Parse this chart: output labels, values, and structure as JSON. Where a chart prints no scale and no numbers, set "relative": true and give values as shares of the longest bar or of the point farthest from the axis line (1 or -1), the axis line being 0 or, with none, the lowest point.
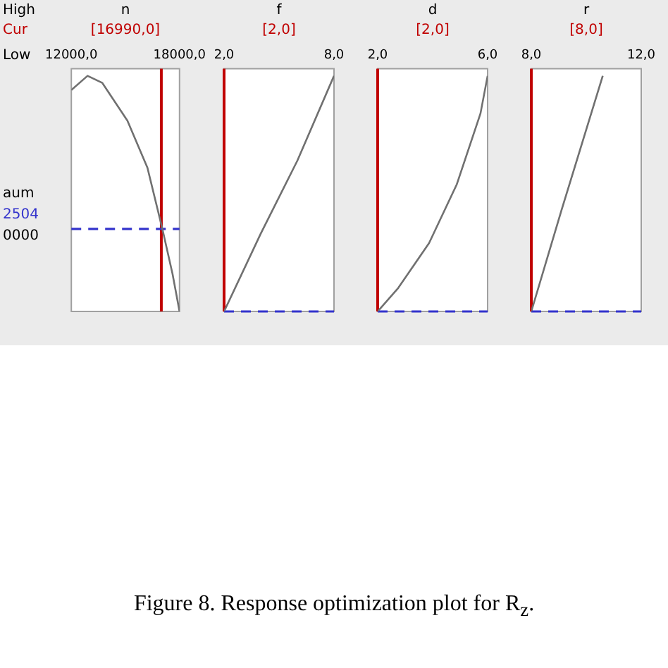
{
  "chart_data": [
    {
      "type": "line",
      "relative": true,
      "xlabel": "n",
      "xlim": [
        12000,
        18000
      ],
      "xticks": [
        {
          "value": 12000,
          "label": "12000,0"
        },
        {
          "value": 18000,
          "label": "18000,0"
        }
      ],
      "tick_labels": "x",
      "legend": false,
      "marker": "none",
      "line_style": "solid",
      "annotations": [
        "High",
        "Cur",
        "Low",
        "aum",
        "2504",
        "0000",
        "Figure 8.  Response optimization plot for R$_{z}$."
      ],
      "series": [
        {
          "color": "#707070",
          "x": [
            12000,
            12900,
            13720,
            15110,
            16220,
            17050,
            17610,
            18000
          ],
          "values": [
            0.94,
            1,
            0.97,
            0.81,
            0.61,
            0.35,
            0.16,
            0
          ]
        }
      ],
      "ref_lines": [
        {
          "axis": "x",
          "value": 16990,
          "label": "[16990,0]",
          "color": "#c00000"
        },
        {
          "axis": "y",
          "value": 0.35,
          "color": "#3333cc",
          "line_style": "dashed"
        }
      ]
    },
    {
      "type": "line",
      "relative": true,
      "xlabel": "f",
      "xlim": [
        2,
        8
      ],
      "xticks": [
        {
          "value": 2,
          "label": "2,0"
        },
        {
          "value": 8,
          "label": "8,0"
        }
      ],
      "tick_labels": "x",
      "legend": false,
      "marker": "none",
      "line_style": "solid",
      "series": [
        {
          "color": "#707070",
          "x": [
            2,
            4,
            6,
            8
          ],
          "values": [
            0,
            0.33,
            0.64,
            1
          ]
        }
      ],
      "ref_lines": [
        {
          "axis": "x",
          "value": 2,
          "label": "[2,0]",
          "color": "#c00000"
        },
        {
          "axis": "y",
          "value": 0,
          "color": "#3333cc",
          "line_style": "dashed"
        }
      ]
    },
    {
      "type": "line",
      "relative": true,
      "xlabel": "d",
      "xlim": [
        2,
        6
      ],
      "xticks": [
        {
          "value": 2,
          "label": "2,0"
        },
        {
          "value": 6,
          "label": "6,0"
        }
      ],
      "tick_labels": "x",
      "legend": false,
      "marker": "none",
      "line_style": "solid",
      "series": [
        {
          "color": "#707070",
          "x": [
            2,
            2.75,
            3.87,
            4.88,
            5.74,
            6
          ],
          "values": [
            0,
            0.1,
            0.29,
            0.54,
            0.84,
            1
          ]
        }
      ],
      "ref_lines": [
        {
          "axis": "x",
          "value": 2,
          "label": "[2,0]",
          "color": "#c00000"
        },
        {
          "axis": "y",
          "value": 0,
          "color": "#3333cc",
          "line_style": "dashed"
        }
      ]
    },
    {
      "type": "line",
      "relative": true,
      "xlabel": "r",
      "xlim": [
        8,
        12
      ],
      "xticks": [
        {
          "value": 8,
          "label": "8,0"
        },
        {
          "value": 12,
          "label": "12,0"
        }
      ],
      "tick_labels": "x",
      "legend": false,
      "marker": "none",
      "line_style": "solid",
      "series": [
        {
          "color": "#707070",
          "x": [
            8,
            9.1,
            10.6
          ],
          "values": [
            0,
            0.43,
            1
          ]
        }
      ],
      "ref_lines": [
        {
          "axis": "x",
          "value": 8,
          "label": "[8,0]",
          "color": "#c00000"
        },
        {
          "axis": "y",
          "value": 0,
          "color": "#3333cc",
          "line_style": "dashed"
        }
      ]
    }
  ]
}
